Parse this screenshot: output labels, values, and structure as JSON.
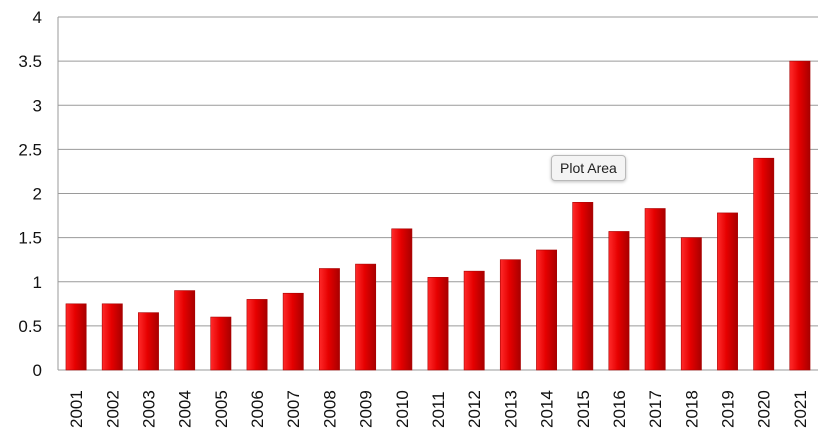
{
  "tooltip": {
    "text": "Plot Area"
  },
  "colors": {
    "bar_top": "#ff2a2a",
    "bar_mid": "#e60000",
    "bar_dark": "#a80000",
    "grid": "#9a9a9a"
  },
  "chart_data": {
    "type": "bar",
    "categories": [
      "2001",
      "2002",
      "2003",
      "2004",
      "2005",
      "2006",
      "2007",
      "2008",
      "2009",
      "2010",
      "2011",
      "2012",
      "2013",
      "2014",
      "2015",
      "2016",
      "2017",
      "2018",
      "2019",
      "2020",
      "2021"
    ],
    "values": [
      0.75,
      0.75,
      0.65,
      0.9,
      0.6,
      0.8,
      0.87,
      1.15,
      1.2,
      1.6,
      1.05,
      1.12,
      1.25,
      1.36,
      1.9,
      1.57,
      1.83,
      1.5,
      1.78,
      2.4,
      3.5
    ],
    "y_ticks": [
      "0",
      "0.5",
      "1",
      "1.5",
      "2",
      "2.5",
      "3",
      "3.5",
      "4"
    ],
    "ylim": [
      0,
      4
    ],
    "grid": true,
    "title": "",
    "xlabel": "",
    "ylabel": ""
  }
}
